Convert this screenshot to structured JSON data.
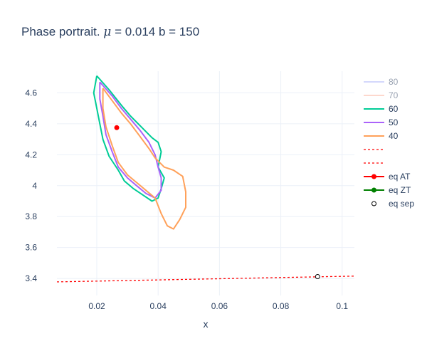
{
  "chart_data": {
    "type": "line",
    "title_prefix": "Phase portrait. ",
    "title_mu": "μ",
    "title_suffix": " = 0.014 b = 150",
    "xlabel": "x",
    "ylabel": "",
    "xlim": [
      0.007,
      0.104
    ],
    "ylim": [
      3.29,
      4.74
    ],
    "xticks": [
      0.02,
      0.04,
      0.06,
      0.08,
      0.1
    ],
    "xtick_labels": [
      "0.02",
      "0.04",
      "0.06",
      "0.08",
      "0.1"
    ],
    "yticks": [
      3.4,
      3.6,
      3.8,
      4.0,
      4.2,
      4.4,
      4.6
    ],
    "ytick_labels": [
      "3.4",
      "3.6",
      "3.8",
      "4",
      "4.2",
      "4.4",
      "4.6"
    ],
    "grid": true,
    "legend_position": "right",
    "series": [
      {
        "name": "80",
        "color": "#aab3fb",
        "visible": false,
        "values": []
      },
      {
        "name": "70",
        "color": "#fdb29d",
        "visible": false,
        "values": []
      },
      {
        "name": "60",
        "color": "#00cc96",
        "values": [
          [
            0.02,
            4.71
          ],
          [
            0.024,
            4.62
          ],
          [
            0.028,
            4.52
          ],
          [
            0.031,
            4.45
          ],
          [
            0.035,
            4.37
          ],
          [
            0.038,
            4.31
          ],
          [
            0.04,
            4.28
          ],
          [
            0.041,
            4.22
          ],
          [
            0.04,
            4.12
          ],
          [
            0.042,
            4.05
          ],
          [
            0.041,
            3.98
          ],
          [
            0.04,
            3.92
          ],
          [
            0.038,
            3.9
          ],
          [
            0.035,
            3.94
          ],
          [
            0.032,
            3.98
          ],
          [
            0.029,
            4.03
          ],
          [
            0.027,
            4.1
          ],
          [
            0.024,
            4.19
          ],
          [
            0.022,
            4.3
          ],
          [
            0.021,
            4.4
          ],
          [
            0.02,
            4.5
          ],
          [
            0.019,
            4.6
          ],
          [
            0.02,
            4.71
          ]
        ]
      },
      {
        "name": "50",
        "color": "#ab63fa",
        "values": [
          [
            0.021,
            4.67
          ],
          [
            0.025,
            4.58
          ],
          [
            0.028,
            4.5
          ],
          [
            0.031,
            4.43
          ],
          [
            0.034,
            4.36
          ],
          [
            0.037,
            4.28
          ],
          [
            0.039,
            4.2
          ],
          [
            0.04,
            4.12
          ],
          [
            0.041,
            4.05
          ],
          [
            0.041,
            3.97
          ],
          [
            0.039,
            3.92
          ],
          [
            0.036,
            3.95
          ],
          [
            0.033,
            4.0
          ],
          [
            0.03,
            4.05
          ],
          [
            0.027,
            4.12
          ],
          [
            0.025,
            4.22
          ],
          [
            0.023,
            4.33
          ],
          [
            0.022,
            4.45
          ],
          [
            0.021,
            4.56
          ],
          [
            0.021,
            4.67
          ]
        ]
      },
      {
        "name": "40",
        "color": "#ffa15a",
        "values": [
          [
            0.022,
            4.63
          ],
          [
            0.025,
            4.55
          ],
          [
            0.028,
            4.47
          ],
          [
            0.031,
            4.4
          ],
          [
            0.034,
            4.32
          ],
          [
            0.037,
            4.24
          ],
          [
            0.039,
            4.18
          ],
          [
            0.042,
            4.12
          ],
          [
            0.045,
            4.1
          ],
          [
            0.048,
            4.06
          ],
          [
            0.049,
            3.96
          ],
          [
            0.049,
            3.86
          ],
          [
            0.047,
            3.78
          ],
          [
            0.045,
            3.72
          ],
          [
            0.043,
            3.74
          ],
          [
            0.041,
            3.82
          ],
          [
            0.039,
            3.92
          ],
          [
            0.036,
            3.97
          ],
          [
            0.033,
            4.02
          ],
          [
            0.03,
            4.07
          ],
          [
            0.027,
            4.15
          ],
          [
            0.025,
            4.26
          ],
          [
            0.023,
            4.38
          ],
          [
            0.022,
            4.5
          ],
          [
            0.022,
            4.63
          ]
        ]
      },
      {
        "name": "",
        "color": "#ff0000",
        "dash": "dot",
        "values": [
          [
            0.007,
            3.378
          ],
          [
            0.104,
            3.415
          ]
        ]
      },
      {
        "name": "",
        "color": "#ff0000",
        "dash": "dot",
        "values": []
      },
      {
        "name": "eq AT",
        "color": "#ff0000",
        "marker": "filled",
        "values": [
          [
            0.0265,
            4.375
          ]
        ]
      },
      {
        "name": "eq ZT",
        "color": "#008000",
        "marker": "filled",
        "values": []
      },
      {
        "name": "eq sep",
        "color": "#000000",
        "marker": "open",
        "values": [
          [
            0.092,
            3.412
          ]
        ]
      }
    ]
  }
}
